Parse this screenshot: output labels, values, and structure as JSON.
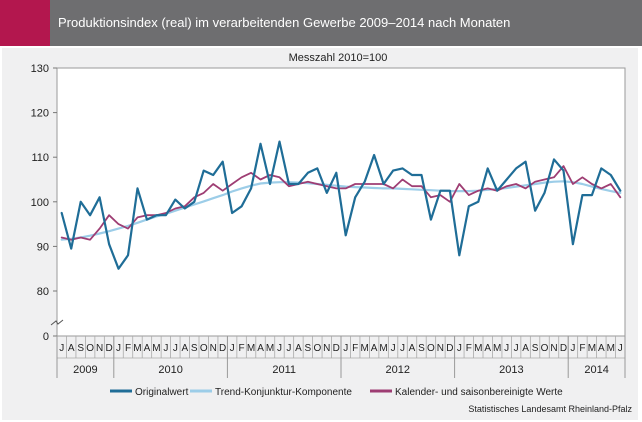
{
  "header": {
    "title": "Produktionsindex (real) im verarbeitenden Gewerbe 2009–2014 nach Monaten"
  },
  "source": "Statistisches Landesamt Rheinland-Pfalz",
  "colors": {
    "header": "#6e6e70",
    "accent": "#b3174e"
  },
  "chart_data": {
    "type": "line",
    "title": "Messzahl 2010=100",
    "ylim": [
      0,
      130
    ],
    "yticks": [
      0,
      80,
      90,
      100,
      110,
      120,
      130
    ],
    "axis_break": true,
    "grid": false,
    "legend_position": "bottom",
    "month_labels": [
      "J",
      "A",
      "S",
      "O",
      "N",
      "D",
      "J",
      "F",
      "M",
      "A",
      "M",
      "J",
      "J",
      "A",
      "S",
      "O",
      "N",
      "D",
      "J",
      "F",
      "M",
      "A",
      "M",
      "J",
      "J",
      "A",
      "S",
      "O",
      "N",
      "D",
      "J",
      "F",
      "M",
      "A",
      "M",
      "J",
      "J",
      "A",
      "S",
      "O",
      "N",
      "D",
      "J",
      "F",
      "M",
      "A",
      "M",
      "J",
      "J",
      "A",
      "S",
      "O",
      "N",
      "D",
      "J",
      "F",
      "M",
      "A",
      "M",
      "J"
    ],
    "years": [
      {
        "label": "2009",
        "start": 0,
        "count": 6
      },
      {
        "label": "2010",
        "start": 6,
        "count": 12
      },
      {
        "label": "2011",
        "start": 18,
        "count": 12
      },
      {
        "label": "2012",
        "start": 30,
        "count": 12
      },
      {
        "label": "2013",
        "start": 42,
        "count": 12
      },
      {
        "label": "2014",
        "start": 54,
        "count": 6
      }
    ],
    "series": [
      {
        "name": "Originalwert",
        "color": "#1f6d97",
        "values": [
          97.5,
          89.5,
          100,
          97,
          101,
          90.5,
          85,
          88,
          103,
          96,
          97,
          97,
          100.5,
          98.5,
          100,
          107,
          106,
          109,
          97.5,
          99,
          103,
          113,
          104,
          113.5,
          104,
          104,
          106.5,
          107.5,
          102,
          106.5,
          92.5,
          101,
          104.5,
          110.5,
          104,
          107,
          107.5,
          106,
          106,
          96,
          102.5,
          102.5,
          88,
          99,
          100,
          107.5,
          102.5,
          105,
          107.5,
          109,
          98,
          102,
          109.5,
          107,
          90.5,
          101.5,
          101.5,
          107.5,
          106,
          102.5
        ]
      },
      {
        "name": "Trend-Konjunktur-Komponente",
        "color": "#9ccde8",
        "values": [
          91.5,
          91.7,
          92,
          92.4,
          92.9,
          93.4,
          94,
          94.6,
          95.3,
          96,
          96.7,
          97.3,
          98,
          98.7,
          99.4,
          100.1,
          100.8,
          101.5,
          102.3,
          103,
          103.6,
          104.1,
          104.3,
          104.4,
          104.4,
          104.3,
          104.2,
          104,
          103.8,
          103.6,
          103.4,
          103.3,
          103.2,
          103.1,
          103,
          103,
          102.9,
          102.8,
          102.7,
          102.6,
          102.5,
          102.4,
          102.4,
          102.4,
          102.5,
          102.7,
          102.9,
          103.1,
          103.4,
          103.7,
          104,
          104.3,
          104.5,
          104.6,
          104.4,
          104,
          103.4,
          102.9,
          102.4,
          102
        ]
      },
      {
        "name": "Kalender- und saisonbereinigte Werte",
        "color": "#9e3d73",
        "values": [
          92,
          91.5,
          92,
          91.5,
          94,
          97,
          95,
          94,
          96.5,
          97,
          97,
          97.5,
          98.5,
          99,
          101,
          102,
          104,
          102.5,
          104,
          105.5,
          106.5,
          105,
          106,
          105.5,
          103.5,
          104,
          104.5,
          104,
          103.5,
          103,
          103,
          104,
          104,
          104,
          104,
          103,
          105,
          103.5,
          103.5,
          101,
          101.5,
          100,
          104,
          101.5,
          102.5,
          103,
          102.5,
          103.5,
          104,
          103,
          104.5,
          105,
          105.5,
          108,
          104,
          105.5,
          104,
          103,
          104,
          101
        ]
      }
    ]
  }
}
